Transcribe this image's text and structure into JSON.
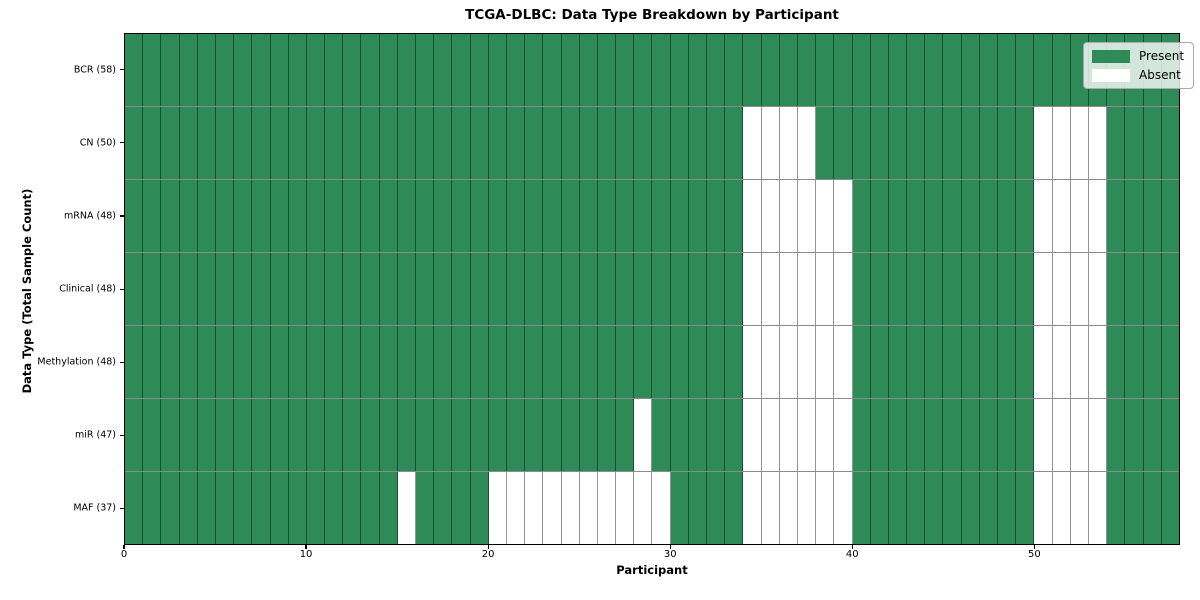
{
  "chart_data": {
    "type": "heatmap",
    "title": "TCGA-DLBC: Data Type Breakdown by Participant",
    "xlabel": "Participant",
    "ylabel": "Data Type (Total Sample Count)",
    "x_ticks": [
      0,
      10,
      20,
      30,
      40,
      50
    ],
    "x_range": [
      0,
      58
    ],
    "n_participants": 58,
    "grid": true,
    "legend_position": "upper right",
    "legend": [
      {
        "label": "Present",
        "color": "#2e8b57"
      },
      {
        "label": "Absent",
        "color": "#ffffff"
      }
    ],
    "colors": {
      "present": "#2e8b57",
      "absent": "#ffffff",
      "gridline": "rgba(0,0,0,0.45)",
      "plot_border": "#000000"
    },
    "rows": [
      {
        "label": "BCR (58)",
        "data_type": "BCR",
        "total": 58,
        "absent_participants": []
      },
      {
        "label": "CN (50)",
        "data_type": "CN",
        "total": 50,
        "absent_participants": [
          34,
          35,
          36,
          37,
          50,
          51,
          52,
          53
        ]
      },
      {
        "label": "mRNA (48)",
        "data_type": "mRNA",
        "total": 48,
        "absent_participants": [
          34,
          35,
          36,
          37,
          38,
          39,
          50,
          51,
          52,
          53
        ]
      },
      {
        "label": "Clinical (48)",
        "data_type": "Clinical",
        "total": 48,
        "absent_participants": [
          34,
          35,
          36,
          37,
          38,
          39,
          50,
          51,
          52,
          53
        ]
      },
      {
        "label": "Methylation (48)",
        "data_type": "Methylation",
        "total": 48,
        "absent_participants": [
          34,
          35,
          36,
          37,
          38,
          39,
          50,
          51,
          52,
          53
        ]
      },
      {
        "label": "miR (47)",
        "data_type": "miR",
        "total": 47,
        "absent_participants": [
          28,
          34,
          35,
          36,
          37,
          38,
          39,
          50,
          51,
          52,
          53
        ]
      },
      {
        "label": "MAF (37)",
        "data_type": "MAF",
        "total": 37,
        "absent_participants": [
          15,
          20,
          21,
          22,
          23,
          24,
          25,
          26,
          27,
          28,
          29,
          34,
          35,
          36,
          37,
          38,
          39,
          50,
          51,
          52,
          53
        ]
      }
    ]
  }
}
